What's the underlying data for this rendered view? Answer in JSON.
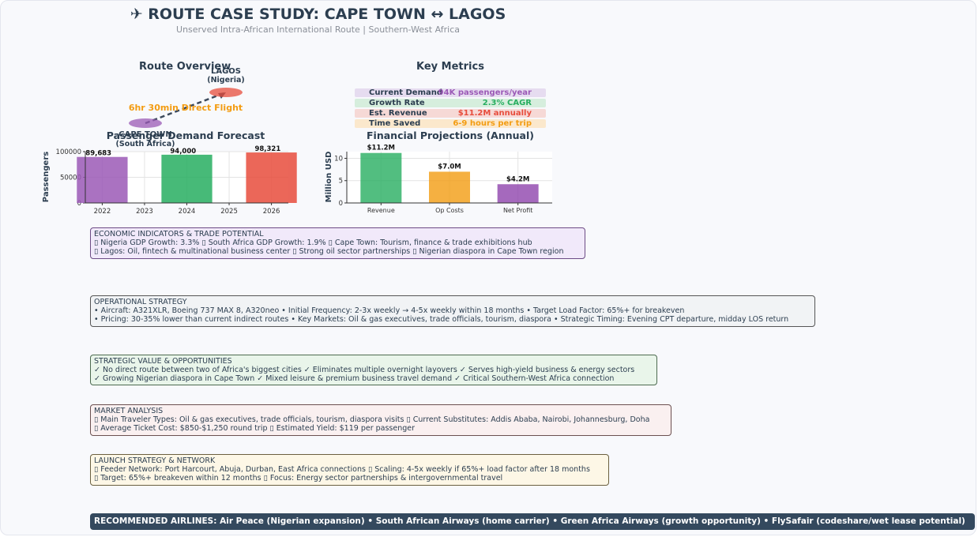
{
  "header": {
    "title": "✈ ROUTE CASE STUDY: CAPE TOWN ↔ LAGOS",
    "subtitle": "Unserved Intra-African International Route | Southern-West Africa"
  },
  "route_overview": {
    "title": "Route Overview",
    "destination_city": "LAGOS",
    "destination_country": "(Nigeria)",
    "origin_city": "CAPE TOWN",
    "origin_country": "(South Africa)",
    "flight_label": "6hr 30min Direct Flight",
    "flight_color": "#f39c12",
    "destination_color": "#e74c3c",
    "origin_color": "#9b59b6"
  },
  "key_metrics": {
    "title": "Key Metrics",
    "items": [
      {
        "label": "Current Demand",
        "value": "94K passengers/year",
        "color": "#9b59b6",
        "bg": "#e6dcf0"
      },
      {
        "label": "Growth Rate",
        "value": "2.3% CAGR",
        "color": "#27ae60",
        "bg": "#d6eedd"
      },
      {
        "label": "Est. Revenue",
        "value": "$11.2M annually",
        "color": "#e74c3c",
        "bg": "#f6d9d6"
      },
      {
        "label": "Time Saved",
        "value": "6-9 hours per trip",
        "color": "#f39c12",
        "bg": "#fbe8cc"
      }
    ]
  },
  "chart_data": [
    {
      "type": "bar",
      "title": "Passenger Demand Forecast",
      "ylabel": "Passengers",
      "xlabel": "",
      "categories": [
        "2022",
        "2024",
        "2026"
      ],
      "x": [
        2022,
        2024,
        2026
      ],
      "values": [
        89683,
        94000,
        98321
      ],
      "value_labels": [
        "89,683",
        "94,000",
        "98,321"
      ],
      "colors": [
        "#9b59b6",
        "#27ae60",
        "#e74c3c"
      ],
      "xticks": [
        "2022",
        "2023",
        "2024",
        "2025",
        "2026"
      ],
      "yticks": [
        "0",
        "50000",
        "100000"
      ],
      "ylim": [
        0,
        100000
      ],
      "grid": true
    },
    {
      "type": "bar",
      "title": "Financial Projections (Annual)",
      "ylabel": "Million USD",
      "xlabel": "",
      "categories": [
        "Revenue",
        "Op Costs",
        "Net Profit"
      ],
      "values": [
        11.2,
        7.0,
        4.2
      ],
      "value_labels": [
        "$11.2M",
        "$7.0M",
        "$4.2M"
      ],
      "colors": [
        "#27ae60",
        "#f39c12",
        "#8e44ad"
      ],
      "yticks": [
        "0",
        "5",
        "10"
      ],
      "ylim": [
        0,
        11.5
      ],
      "grid": true
    }
  ],
  "sections": {
    "economic": {
      "heading": "ECONOMIC INDICATORS & TRADE POTENTIAL",
      "line1": "▯ Nigeria GDP Growth: 3.3%  ▯ South Africa GDP Growth: 1.9%  ▯ Cape Town: Tourism, finance & trade exhibitions hub",
      "line2": "▯ Lagos: Oil, fintech & multinational business center  ▯ Strong oil sector partnerships  ▯ Nigerian diaspora in Cape Town region",
      "bg": "#f1e9fa",
      "border": "#6c4b85"
    },
    "operational": {
      "heading": "OPERATIONAL STRATEGY",
      "line1": "• Aircraft: A321XLR, Boeing 737 MAX 8, A320neo  • Initial Frequency: 2-3x weekly → 4-5x weekly within 18 months  • Target Load Factor: 65%+ for breakeven",
      "line2": "• Pricing: 30-35% lower than current indirect routes  • Key Markets: Oil & gas executives, trade officials, tourism, diaspora  • Strategic Timing: Evening CPT departure, midday LOS return",
      "bg": "#f1f3f5",
      "border": "#555555"
    },
    "strategic": {
      "heading": "STRATEGIC VALUE & OPPORTUNITIES",
      "line1": "✓ No direct route between two of Africa's biggest cities  ✓ Eliminates multiple overnight layovers  ✓ Serves high-yield business & energy sectors",
      "line2": "✓ Growing Nigerian diaspora in Cape Town  ✓ Mixed leisure & premium business travel demand  ✓ Critical Southern-West Africa connection",
      "bg": "#e9f5ea",
      "border": "#4d6b50"
    },
    "market": {
      "heading": "MARKET ANALYSIS",
      "line1": "▯ Main Traveler Types: Oil & gas executives, trade officials, tourism, diaspora visits  ▯ Current Substitutes: Addis Ababa, Nairobi, Johannesburg, Doha",
      "line2": "▯ Average Ticket Cost: $850-$1,250 round trip  ▯ Estimated Yield: $119 per passenger",
      "bg": "#faf0f0",
      "border": "#6b5050"
    },
    "launch": {
      "heading": "LAUNCH STRATEGY & NETWORK",
      "line1": "▯ Feeder Network: Port Harcourt, Abuja, Durban, East Africa connections  ▯ Scaling: 4-5x weekly if 65%+ load factor after 18 months",
      "line2": "▯ Target: 65%+ breakeven within 12 months  ▯ Focus: Energy sector partnerships & intergovernmental travel",
      "bg": "#fdf7e6",
      "border": "#6b6040"
    }
  },
  "recommended": "RECOMMENDED AIRLINES: Air Peace (Nigerian expansion) • South African Airways (home carrier) • Green Africa Airways (growth opportunity) • FlySafair (codeshare/wet lease potential)"
}
